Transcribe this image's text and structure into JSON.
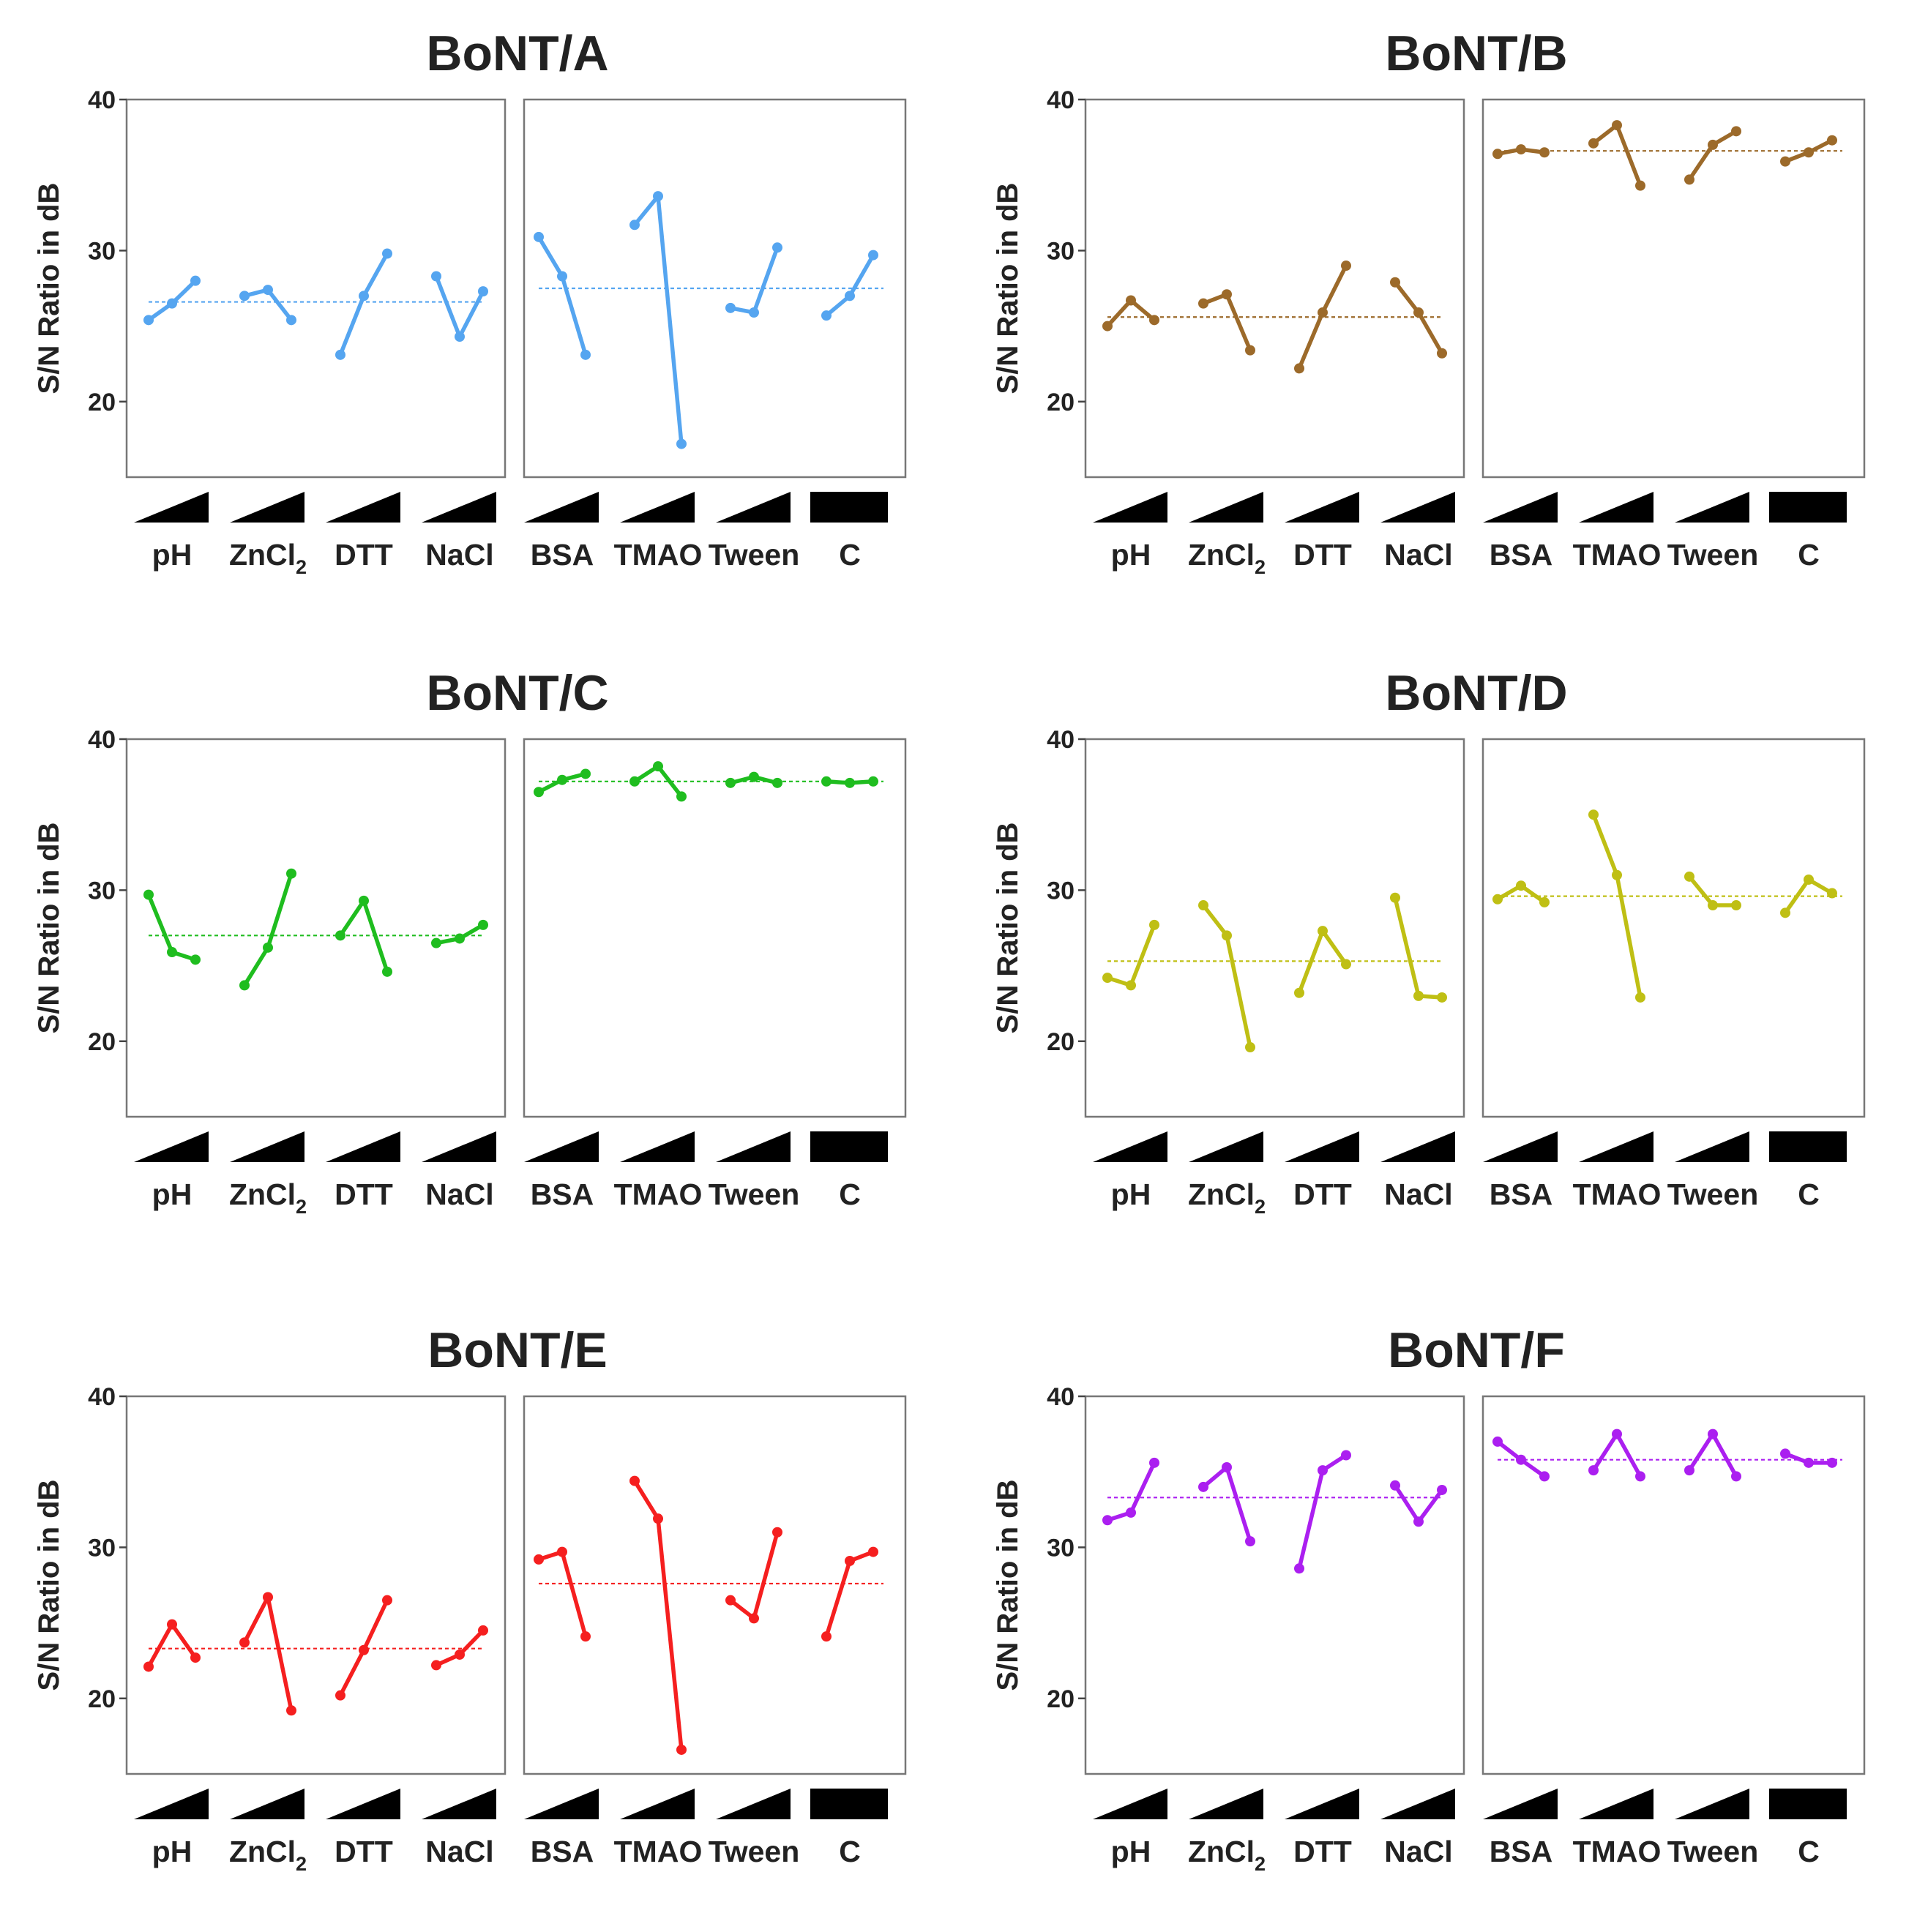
{
  "figure": {
    "factors": [
      "pH",
      "ZnCl",
      "DTT",
      "NaCl",
      "BSA",
      "TMAO",
      "Tween",
      "C"
    ],
    "factor_subscripts": [
      "",
      "2",
      "",
      "",
      "",
      "",
      "",
      ""
    ],
    "ramp_marker": "ramp-icon",
    "constant_marker": "bar-icon"
  },
  "chart_data": [
    {
      "type": "line",
      "title": "BoNT/A",
      "ylabel": "S/N Ratio in dB",
      "ylim": [
        15,
        40
      ],
      "yticks": [
        20,
        30,
        40
      ],
      "color": "#55a5f0",
      "grid": false,
      "mean_lines": [
        26.6,
        27.5
      ],
      "series": [
        {
          "factor": "pH",
          "values": [
            25.4,
            26.5,
            28.0
          ]
        },
        {
          "factor": "ZnCl2",
          "values": [
            27.0,
            27.4,
            25.4
          ]
        },
        {
          "factor": "DTT",
          "values": [
            23.1,
            27.0,
            29.8
          ]
        },
        {
          "factor": "NaCl",
          "values": [
            28.3,
            24.3,
            27.3
          ]
        },
        {
          "factor": "BSA",
          "values": [
            30.9,
            28.3,
            23.1
          ]
        },
        {
          "factor": "TMAO",
          "values": [
            31.7,
            33.6,
            17.2
          ]
        },
        {
          "factor": "Tween",
          "values": [
            26.2,
            25.9,
            30.2
          ]
        },
        {
          "factor": "C",
          "values": [
            25.7,
            27.0,
            29.7
          ]
        }
      ]
    },
    {
      "type": "line",
      "title": "BoNT/B",
      "ylabel": "S/N Ratio in dB",
      "ylim": [
        15,
        40
      ],
      "yticks": [
        20,
        30,
        40
      ],
      "color": "#9c6a2a",
      "grid": false,
      "mean_lines": [
        25.6,
        36.6
      ],
      "series": [
        {
          "factor": "pH",
          "values": [
            25.0,
            26.7,
            25.4
          ]
        },
        {
          "factor": "ZnCl2",
          "values": [
            26.5,
            27.1,
            23.4
          ]
        },
        {
          "factor": "DTT",
          "values": [
            22.2,
            25.9,
            29.0
          ]
        },
        {
          "factor": "NaCl",
          "values": [
            27.9,
            25.9,
            23.2
          ]
        },
        {
          "factor": "BSA",
          "values": [
            36.4,
            36.7,
            36.5
          ]
        },
        {
          "factor": "TMAO",
          "values": [
            37.1,
            38.3,
            34.3
          ]
        },
        {
          "factor": "Tween",
          "values": [
            34.7,
            37.0,
            37.9
          ]
        },
        {
          "factor": "C",
          "values": [
            35.9,
            36.5,
            37.3
          ]
        }
      ]
    },
    {
      "type": "line",
      "title": "BoNT/C",
      "ylabel": "S/N Ratio in dB",
      "ylim": [
        15,
        40
      ],
      "yticks": [
        20,
        30,
        40
      ],
      "color": "#1fbd1f",
      "grid": false,
      "mean_lines": [
        27.0,
        37.2
      ],
      "series": [
        {
          "factor": "pH",
          "values": [
            29.7,
            25.9,
            25.4
          ]
        },
        {
          "factor": "ZnCl2",
          "values": [
            23.7,
            26.2,
            31.1
          ]
        },
        {
          "factor": "DTT",
          "values": [
            27.0,
            29.3,
            24.6
          ]
        },
        {
          "factor": "NaCl",
          "values": [
            26.5,
            26.8,
            27.7
          ]
        },
        {
          "factor": "BSA",
          "values": [
            36.5,
            37.3,
            37.7
          ]
        },
        {
          "factor": "TMAO",
          "values": [
            37.2,
            38.2,
            36.2
          ]
        },
        {
          "factor": "Tween",
          "values": [
            37.1,
            37.5,
            37.1
          ]
        },
        {
          "factor": "C",
          "values": [
            37.2,
            37.1,
            37.2
          ]
        }
      ]
    },
    {
      "type": "line",
      "title": "BoNT/D",
      "ylabel": "S/N Ratio in dB",
      "ylim": [
        15,
        40
      ],
      "yticks": [
        20,
        30,
        40
      ],
      "color": "#bfbf14",
      "grid": false,
      "mean_lines": [
        25.3,
        29.6
      ],
      "series": [
        {
          "factor": "pH",
          "values": [
            24.2,
            23.7,
            27.7
          ]
        },
        {
          "factor": "ZnCl2",
          "values": [
            29.0,
            27.0,
            19.6
          ]
        },
        {
          "factor": "DTT",
          "values": [
            23.2,
            27.3,
            25.1
          ]
        },
        {
          "factor": "NaCl",
          "values": [
            29.5,
            23.0,
            22.9
          ]
        },
        {
          "factor": "BSA",
          "values": [
            29.4,
            30.3,
            29.2
          ]
        },
        {
          "factor": "TMAO",
          "values": [
            35.0,
            31.0,
            22.9
          ]
        },
        {
          "factor": "Tween",
          "values": [
            30.9,
            29.0,
            29.0
          ]
        },
        {
          "factor": "C",
          "values": [
            28.5,
            30.7,
            29.8
          ]
        }
      ]
    },
    {
      "type": "line",
      "title": "BoNT/E",
      "ylabel": "S/N Ratio in dB",
      "ylim": [
        15,
        40
      ],
      "yticks": [
        20,
        30,
        40
      ],
      "color": "#f51f1f",
      "grid": false,
      "mean_lines": [
        23.3,
        27.6
      ],
      "series": [
        {
          "factor": "pH",
          "values": [
            22.1,
            24.9,
            22.7
          ]
        },
        {
          "factor": "ZnCl2",
          "values": [
            23.7,
            26.7,
            19.2
          ]
        },
        {
          "factor": "DTT",
          "values": [
            20.2,
            23.2,
            26.5
          ]
        },
        {
          "factor": "NaCl",
          "values": [
            22.2,
            22.9,
            24.5
          ]
        },
        {
          "factor": "BSA",
          "values": [
            29.2,
            29.7,
            24.1
          ]
        },
        {
          "factor": "TMAO",
          "values": [
            34.4,
            31.9,
            16.6
          ]
        },
        {
          "factor": "Tween",
          "values": [
            26.5,
            25.3,
            31.0
          ]
        },
        {
          "factor": "C",
          "values": [
            24.1,
            29.1,
            29.7
          ]
        }
      ]
    },
    {
      "type": "line",
      "title": "BoNT/F",
      "ylabel": "S/N Ratio in dB",
      "ylim": [
        15,
        40
      ],
      "yticks": [
        20,
        30,
        40
      ],
      "color": "#ab1ff0",
      "grid": false,
      "mean_lines": [
        33.3,
        35.8
      ],
      "series": [
        {
          "factor": "pH",
          "values": [
            31.8,
            32.3,
            35.6
          ]
        },
        {
          "factor": "ZnCl2",
          "values": [
            34.0,
            35.3,
            30.4
          ]
        },
        {
          "factor": "DTT",
          "values": [
            28.6,
            35.1,
            36.1
          ]
        },
        {
          "factor": "NaCl",
          "values": [
            34.1,
            31.7,
            33.8
          ]
        },
        {
          "factor": "BSA",
          "values": [
            37.0,
            35.8,
            34.7
          ]
        },
        {
          "factor": "TMAO",
          "values": [
            35.1,
            37.5,
            34.7
          ]
        },
        {
          "factor": "Tween",
          "values": [
            35.1,
            37.5,
            34.7
          ]
        },
        {
          "factor": "C",
          "values": [
            36.2,
            35.6,
            35.6
          ]
        }
      ]
    }
  ]
}
